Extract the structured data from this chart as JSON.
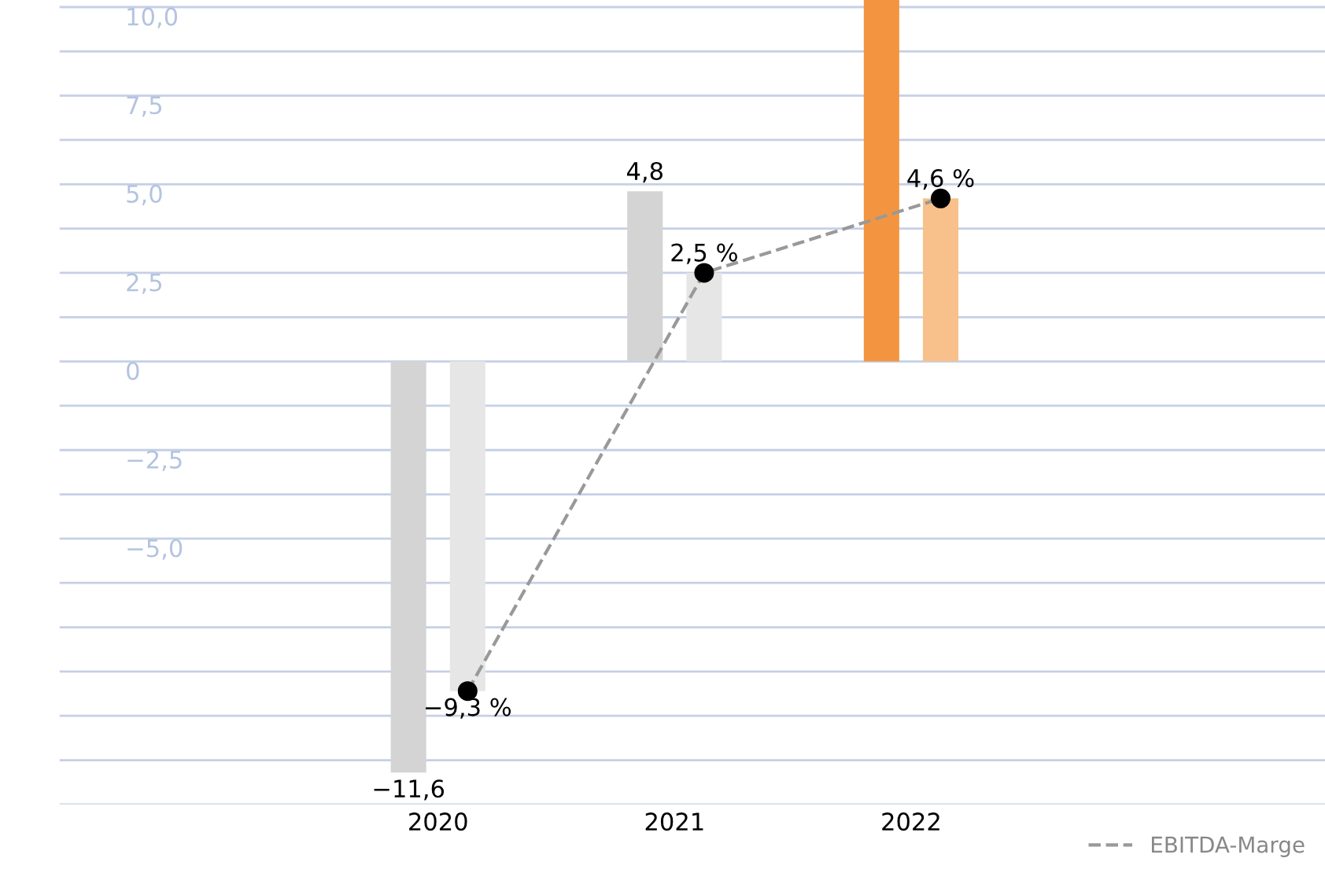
{
  "chart_data": {
    "type": "bar",
    "categories": [
      "2020",
      "2021",
      "2022"
    ],
    "series": [
      {
        "colors": [
          "#d4d4d4",
          "#d4d4d4",
          "#f39540"
        ],
        "color": "#d4d4d4",
        "values": [
          -11.6,
          4.8,
          10.2
        ],
        "value_labels": [
          "−11,6",
          "4,8",
          null
        ]
      },
      {
        "colors": [
          "#e6e6e6",
          "#e6e6e6",
          "#f8c08a"
        ],
        "color": "#e6e6e6",
        "values": [
          -9.3,
          2.5,
          4.6
        ],
        "value_labels": [
          "−9,3 %",
          "2,5 %",
          "4,6 %"
        ]
      },
      {
        "type": "line",
        "name": "EBITDA-Marge",
        "color": "#999999",
        "values": [
          -9.3,
          2.5,
          4.6
        ],
        "marker": "circle",
        "line_style": "dashed"
      }
    ],
    "ylim": [
      -12.5,
      10.2
    ],
    "yticks": [
      {
        "value": -12.5,
        "label": null
      },
      {
        "value": -11.25,
        "label": null
      },
      {
        "value": -10,
        "label": null
      },
      {
        "value": -8.75,
        "label": null
      },
      {
        "value": -7.5,
        "label": null
      },
      {
        "value": -6.25,
        "label": null
      },
      {
        "value": -5,
        "label": "−5,0"
      },
      {
        "value": -3.75,
        "label": null
      },
      {
        "value": -2.5,
        "label": "−2,5"
      },
      {
        "value": -1.25,
        "label": null
      },
      {
        "value": 0,
        "label": "0"
      },
      {
        "value": 1.25,
        "label": null
      },
      {
        "value": 2.5,
        "label": "2,5"
      },
      {
        "value": 3.75,
        "label": null
      },
      {
        "value": 5,
        "label": "5,0"
      },
      {
        "value": 6.25,
        "label": null
      },
      {
        "value": 7.5,
        "label": "7,5"
      },
      {
        "value": 8.75,
        "label": null
      },
      {
        "value": 10,
        "label": "10,0"
      }
    ],
    "grid": "y",
    "legend": "bottom right"
  }
}
